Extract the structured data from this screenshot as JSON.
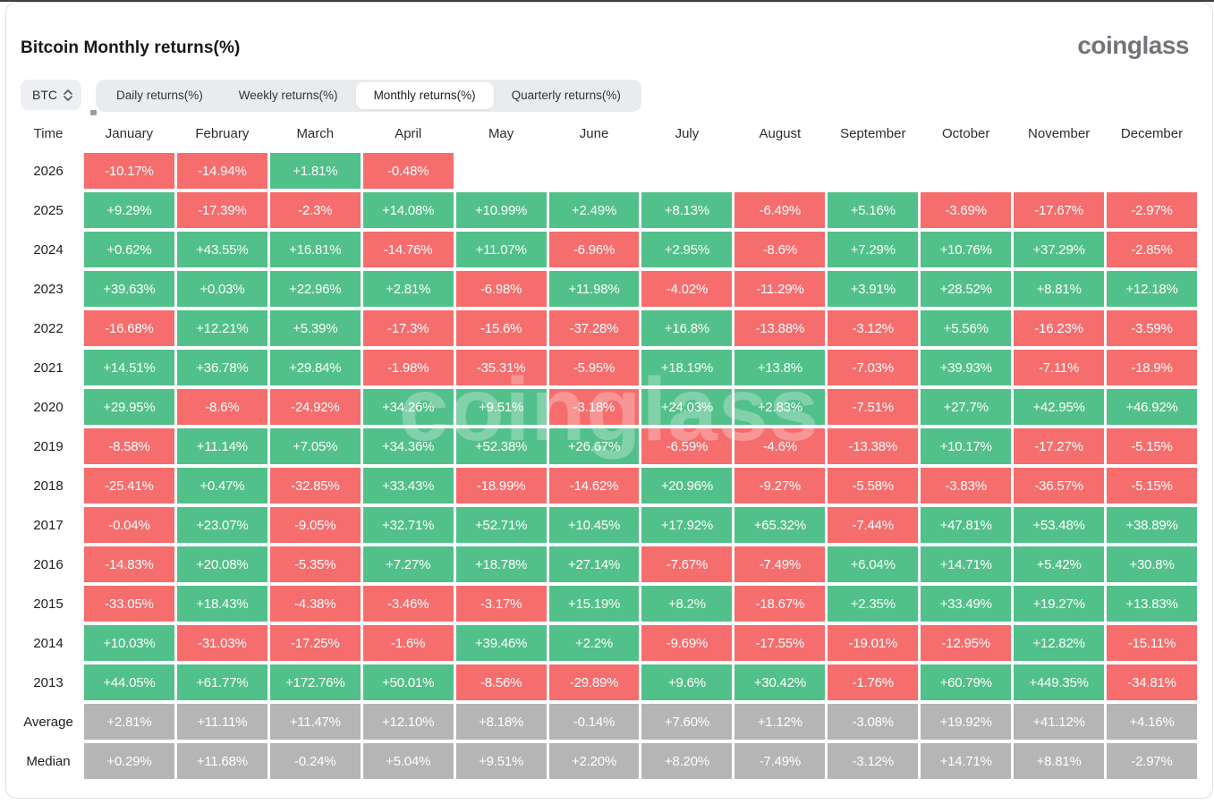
{
  "page": {
    "title": "Bitcoin Monthly returns(%)",
    "logo": "coinglass",
    "watermark": "coinglass"
  },
  "controls": {
    "symbol_select": {
      "label": "BTC"
    },
    "tabs": [
      {
        "label": "Daily returns(%)",
        "active": false
      },
      {
        "label": "Weekly returns(%)",
        "active": false
      },
      {
        "label": "Monthly returns(%)",
        "active": true
      },
      {
        "label": "Quarterly returns(%)",
        "active": false
      }
    ]
  },
  "colors": {
    "positive": "#52C08A",
    "negative": "#F56D6D",
    "neutral": "#B5B5B6"
  },
  "table": {
    "corner_label": "Time",
    "months": [
      "January",
      "February",
      "March",
      "April",
      "May",
      "June",
      "July",
      "August",
      "September",
      "October",
      "November",
      "December"
    ],
    "rows": [
      {
        "label": "2026",
        "type": "year",
        "values": [
          "-10.17%",
          "-14.94%",
          "+1.81%",
          "-0.48%",
          "",
          "",
          "",
          "",
          "",
          "",
          "",
          ""
        ]
      },
      {
        "label": "2025",
        "type": "year",
        "values": [
          "+9.29%",
          "-17.39%",
          "-2.3%",
          "+14.08%",
          "+10.99%",
          "+2.49%",
          "+8.13%",
          "-6.49%",
          "+5.16%",
          "-3.69%",
          "-17.67%",
          "-2.97%"
        ]
      },
      {
        "label": "2024",
        "type": "year",
        "values": [
          "+0.62%",
          "+43.55%",
          "+16.81%",
          "-14.76%",
          "+11.07%",
          "-6.96%",
          "+2.95%",
          "-8.6%",
          "+7.29%",
          "+10.76%",
          "+37.29%",
          "-2.85%"
        ]
      },
      {
        "label": "2023",
        "type": "year",
        "values": [
          "+39.63%",
          "+0.03%",
          "+22.96%",
          "+2.81%",
          "-6.98%",
          "+11.98%",
          "-4.02%",
          "-11.29%",
          "+3.91%",
          "+28.52%",
          "+8.81%",
          "+12.18%"
        ]
      },
      {
        "label": "2022",
        "type": "year",
        "values": [
          "-16.68%",
          "+12.21%",
          "+5.39%",
          "-17.3%",
          "-15.6%",
          "-37.28%",
          "+16.8%",
          "-13.88%",
          "-3.12%",
          "+5.56%",
          "-16.23%",
          "-3.59%"
        ]
      },
      {
        "label": "2021",
        "type": "year",
        "values": [
          "+14.51%",
          "+36.78%",
          "+29.84%",
          "-1.98%",
          "-35.31%",
          "-5.95%",
          "+18.19%",
          "+13.8%",
          "-7.03%",
          "+39.93%",
          "-7.11%",
          "-18.9%"
        ]
      },
      {
        "label": "2020",
        "type": "year",
        "values": [
          "+29.95%",
          "-8.6%",
          "-24.92%",
          "+34.26%",
          "+9.51%",
          "-3.18%",
          "+24.03%",
          "+2.83%",
          "-7.51%",
          "+27.7%",
          "+42.95%",
          "+46.92%"
        ]
      },
      {
        "label": "2019",
        "type": "year",
        "values": [
          "-8.58%",
          "+11.14%",
          "+7.05%",
          "+34.36%",
          "+52.38%",
          "+26.67%",
          "-6.59%",
          "-4.6%",
          "-13.38%",
          "+10.17%",
          "-17.27%",
          "-5.15%"
        ]
      },
      {
        "label": "2018",
        "type": "year",
        "values": [
          "-25.41%",
          "+0.47%",
          "-32.85%",
          "+33.43%",
          "-18.99%",
          "-14.62%",
          "+20.96%",
          "-9.27%",
          "-5.58%",
          "-3.83%",
          "-36.57%",
          "-5.15%"
        ]
      },
      {
        "label": "2017",
        "type": "year",
        "values": [
          "-0.04%",
          "+23.07%",
          "-9.05%",
          "+32.71%",
          "+52.71%",
          "+10.45%",
          "+17.92%",
          "+65.32%",
          "-7.44%",
          "+47.81%",
          "+53.48%",
          "+38.89%"
        ]
      },
      {
        "label": "2016",
        "type": "year",
        "values": [
          "-14.83%",
          "+20.08%",
          "-5.35%",
          "+7.27%",
          "+18.78%",
          "+27.14%",
          "-7.67%",
          "-7.49%",
          "+6.04%",
          "+14.71%",
          "+5.42%",
          "+30.8%"
        ]
      },
      {
        "label": "2015",
        "type": "year",
        "values": [
          "-33.05%",
          "+18.43%",
          "-4.38%",
          "-3.46%",
          "-3.17%",
          "+15.19%",
          "+8.2%",
          "-18.67%",
          "+2.35%",
          "+33.49%",
          "+19.27%",
          "+13.83%"
        ]
      },
      {
        "label": "2014",
        "type": "year",
        "values": [
          "+10.03%",
          "-31.03%",
          "-17.25%",
          "-1.6%",
          "+39.46%",
          "+2.2%",
          "-9.69%",
          "-17.55%",
          "-19.01%",
          "-12.95%",
          "+12.82%",
          "-15.11%"
        ]
      },
      {
        "label": "2013",
        "type": "year",
        "values": [
          "+44.05%",
          "+61.77%",
          "+172.76%",
          "+50.01%",
          "-8.56%",
          "-29.89%",
          "+9.6%",
          "+30.42%",
          "-1.76%",
          "+60.79%",
          "+449.35%",
          "-34.81%"
        ]
      },
      {
        "label": "Average",
        "type": "stat",
        "values": [
          "+2.81%",
          "+11.11%",
          "+11.47%",
          "+12.10%",
          "+8.18%",
          "-0.14%",
          "+7.60%",
          "+1.12%",
          "-3.08%",
          "+19.92%",
          "+41.12%",
          "+4.16%"
        ]
      },
      {
        "label": "Median",
        "type": "stat",
        "values": [
          "+0.29%",
          "+11.68%",
          "-0.24%",
          "+5.04%",
          "+9.51%",
          "+2.20%",
          "+8.20%",
          "-7.49%",
          "-3.12%",
          "+14.71%",
          "+8.81%",
          "-2.97%"
        ]
      }
    ]
  }
}
